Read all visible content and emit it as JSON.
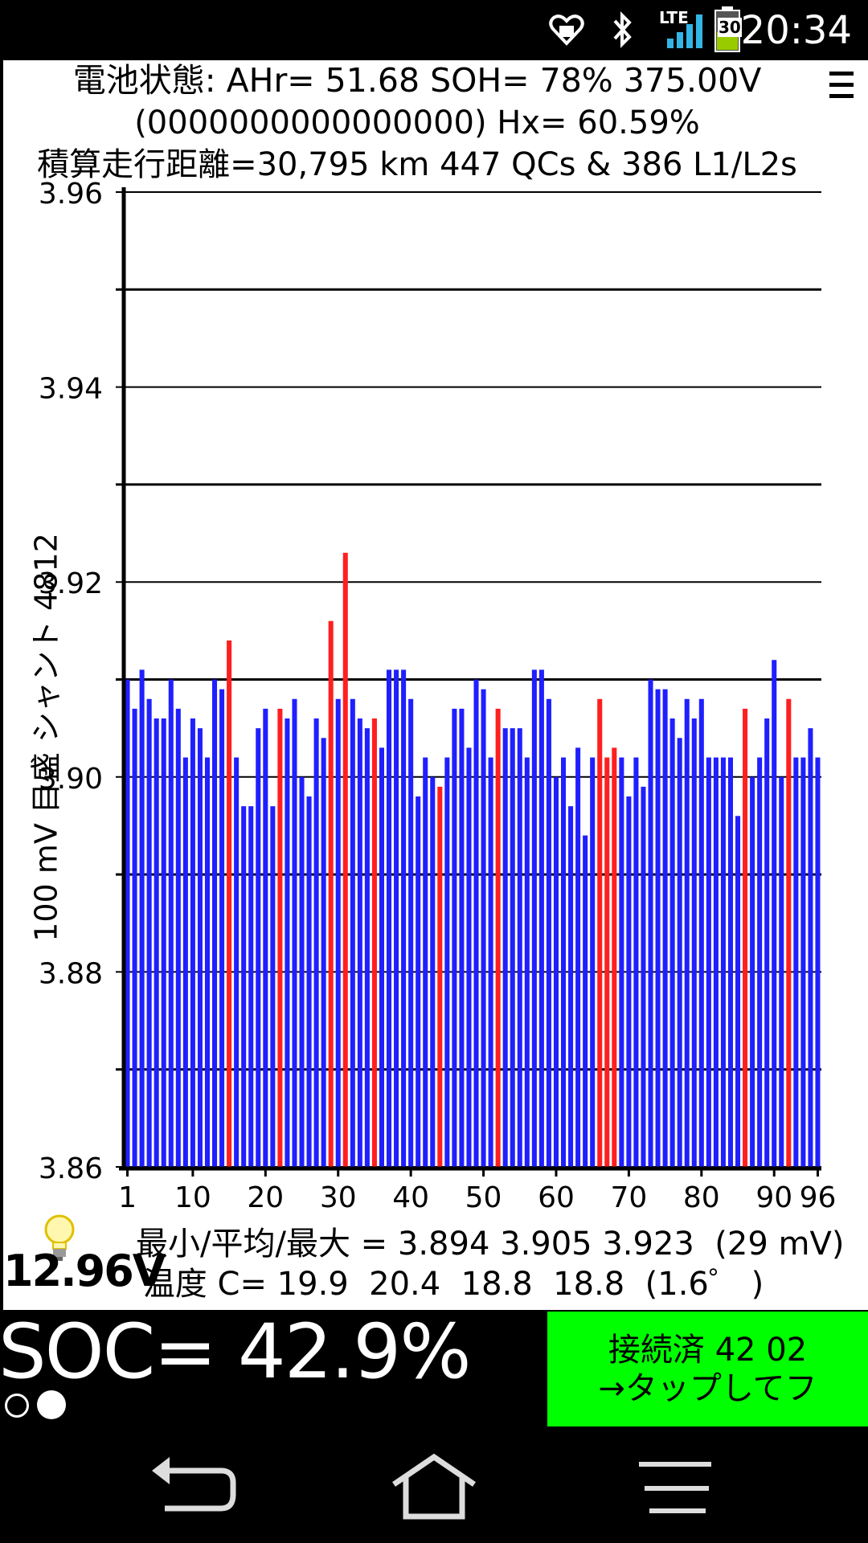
{
  "status_bar": {
    "time": "20:34",
    "network": "LTE",
    "battery_level": "30",
    "icons": [
      "heart-notification-icon",
      "bluetooth-icon",
      "lte-signal-icon",
      "battery-icon"
    ]
  },
  "header": {
    "line1": "電池状態: AHr= 51.68 SOH= 78% 375.00V",
    "line2": "(0000000000000000)   Hx= 60.59%",
    "line3": "積算走行距離=30,795 km  447 QCs  &  386 L1/L2s"
  },
  "chart_data": {
    "type": "bar",
    "ylabel": "100 mV 目盛  シャント 4812",
    "ylim": [
      3.86,
      3.96
    ],
    "yticks": [
      "3.96",
      "3.94",
      "3.92",
      "3.90",
      "3.88",
      "3.86"
    ],
    "xticks": [
      "1",
      "10",
      "20",
      "30",
      "40",
      "50",
      "60",
      "70",
      "80",
      "90",
      "96"
    ],
    "grid": true,
    "colors": {
      "normal": "#1f1fff",
      "shunt": "#ff1f1f"
    },
    "categories_count": 96,
    "values": [
      3.91,
      3.907,
      3.911,
      3.908,
      3.906,
      3.906,
      3.91,
      3.907,
      3.902,
      3.906,
      3.905,
      3.902,
      3.91,
      3.909,
      3.914,
      3.902,
      3.897,
      3.897,
      3.905,
      3.907,
      3.897,
      3.907,
      3.906,
      3.908,
      3.9,
      3.898,
      3.906,
      3.904,
      3.916,
      3.908,
      3.923,
      3.908,
      3.906,
      3.905,
      3.906,
      3.903,
      3.911,
      3.911,
      3.911,
      3.908,
      3.898,
      3.902,
      3.9,
      3.899,
      3.902,
      3.907,
      3.907,
      3.903,
      3.91,
      3.909,
      3.902,
      3.907,
      3.905,
      3.905,
      3.905,
      3.902,
      3.911,
      3.911,
      3.908,
      3.9,
      3.902,
      3.897,
      3.903,
      3.894,
      3.902,
      3.908,
      3.902,
      3.903,
      3.902,
      3.898,
      3.902,
      3.899,
      3.91,
      3.909,
      3.909,
      3.906,
      3.904,
      3.908,
      3.906,
      3.908,
      3.902,
      3.902,
      3.902,
      3.902,
      3.896,
      3.907,
      3.9,
      3.902,
      3.906,
      3.912,
      3.9,
      3.908,
      3.902,
      3.902,
      3.905,
      3.902
    ],
    "shunt_cells": [
      15,
      22,
      29,
      31,
      35,
      44,
      52,
      66,
      67,
      68,
      86,
      92
    ]
  },
  "stats": {
    "line1": "最小/平均/最大 = 3.894 3.905 3.923  (29 mV)",
    "line2": "温度 C= 19.9  20.4  18.8  18.8  (1.6゜ )"
  },
  "battery_12v": "12.96V",
  "soc": "SOC= 42.9%",
  "connect_button": {
    "line1": "接続済 42 02",
    "line2": "→タップしてフ"
  },
  "navbar": {
    "icons": [
      "back-icon",
      "home-icon",
      "menu-icon"
    ]
  }
}
